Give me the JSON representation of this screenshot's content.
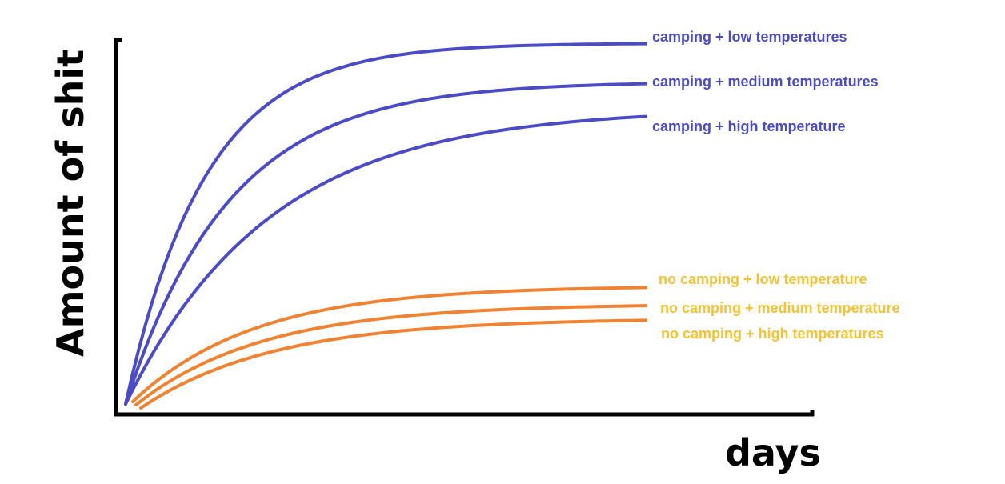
{
  "chart_data": {
    "type": "line",
    "title": "",
    "xlabel": "days",
    "ylabel": "Amount of shit",
    "grid": false,
    "legend": "inline-right",
    "series": [
      {
        "name": "camping + low temperatures",
        "color": "#4b4bc8",
        "plateau": 0.99,
        "rate": 6.5
      },
      {
        "name": "camping + medium temperatures",
        "color": "#4b4bc8",
        "plateau": 0.88,
        "rate": 5.0
      },
      {
        "name": "camping + high temperature",
        "color": "#4b4bc8",
        "plateau": 0.79,
        "rate": 3.6
      },
      {
        "name": "no camping + low temperature",
        "color": "#f08232",
        "plateau": 0.32,
        "rate": 4.2
      },
      {
        "name": "no camping + medium temperature",
        "color": "#f08232",
        "plateau": 0.27,
        "rate": 4.0
      },
      {
        "name": "no camping + high temperatures",
        "color": "#f08232",
        "plateau": 0.23,
        "rate": 3.8
      }
    ],
    "label_colors": {
      "camping": "#4b4bc8",
      "no_camping": "#f5c232"
    }
  }
}
